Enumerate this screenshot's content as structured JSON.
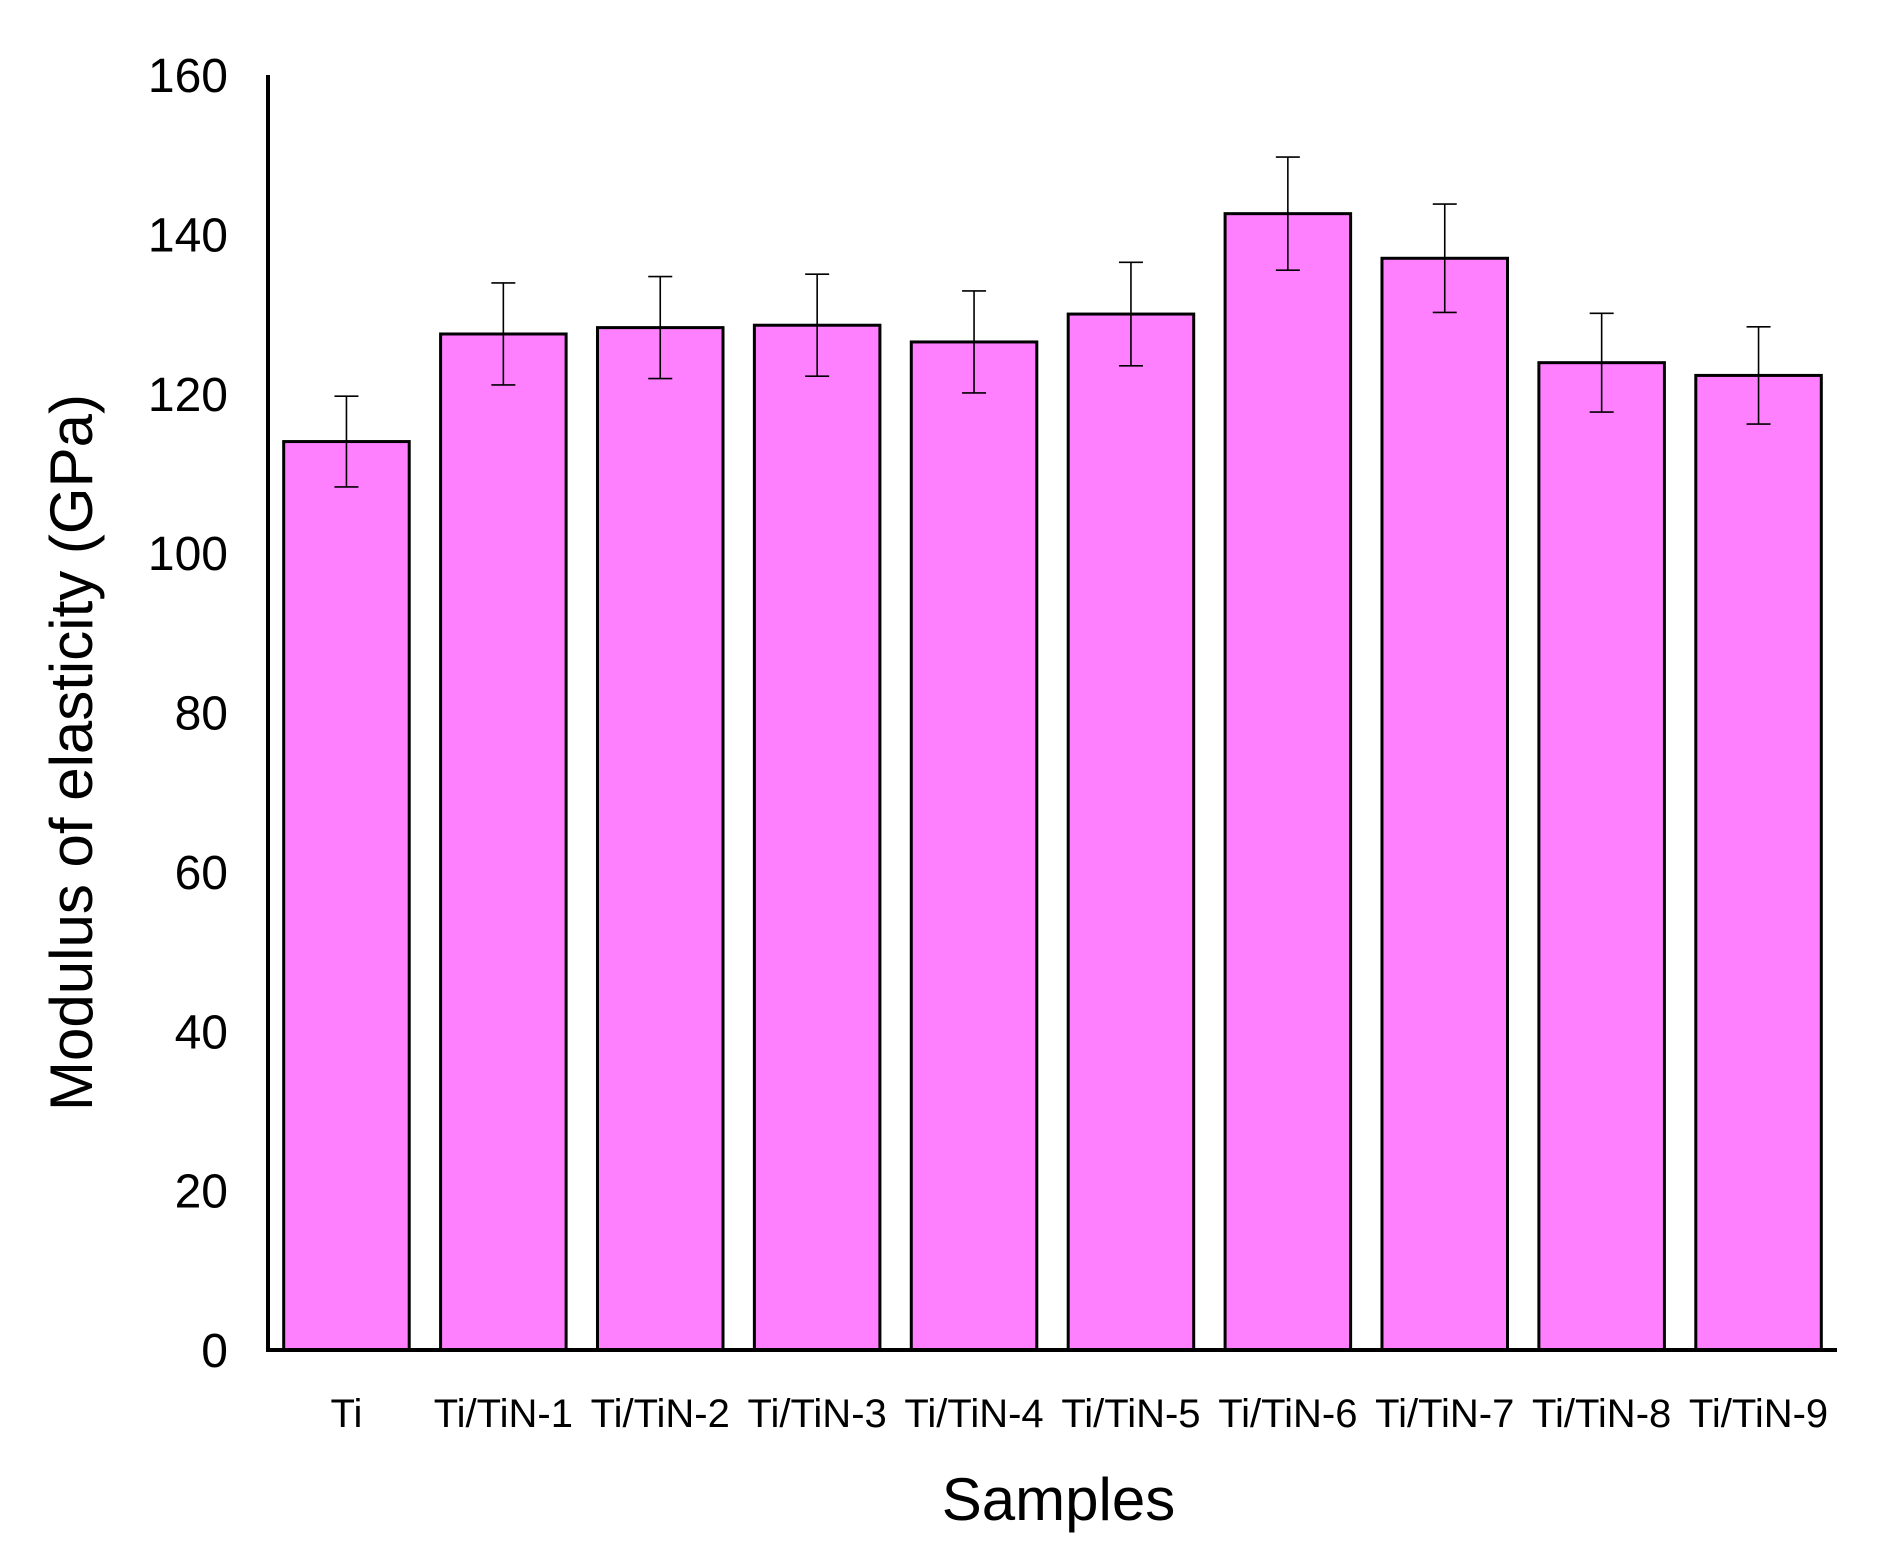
{
  "chart_data": {
    "type": "bar",
    "title": "",
    "xlabel": "Samples",
    "ylabel": "Modulus of elasticity (GPa)",
    "categories": [
      "Ti",
      "Ti/TiN-1",
      "Ti/TiN-2",
      "Ti/TiN-3",
      "Ti/TiN-4",
      "Ti/TiN-5",
      "Ti/TiN-6",
      "Ti/TiN-7",
      "Ti/TiN-8",
      "Ti/TiN-9"
    ],
    "values": [
      114,
      127.5,
      128.3,
      128.6,
      126.5,
      130,
      142.6,
      137,
      123.9,
      122.3
    ],
    "error": [
      5.7,
      6.4,
      6.4,
      6.4,
      6.4,
      6.5,
      7.1,
      6.8,
      6.2,
      6.1
    ],
    "ylim": [
      0,
      160
    ],
    "yticks": [
      0,
      20,
      40,
      60,
      80,
      100,
      120,
      140,
      160
    ],
    "grid": false,
    "legend": "none",
    "bar_color": "#ff80ff",
    "bar_edge_color": "#000000"
  }
}
